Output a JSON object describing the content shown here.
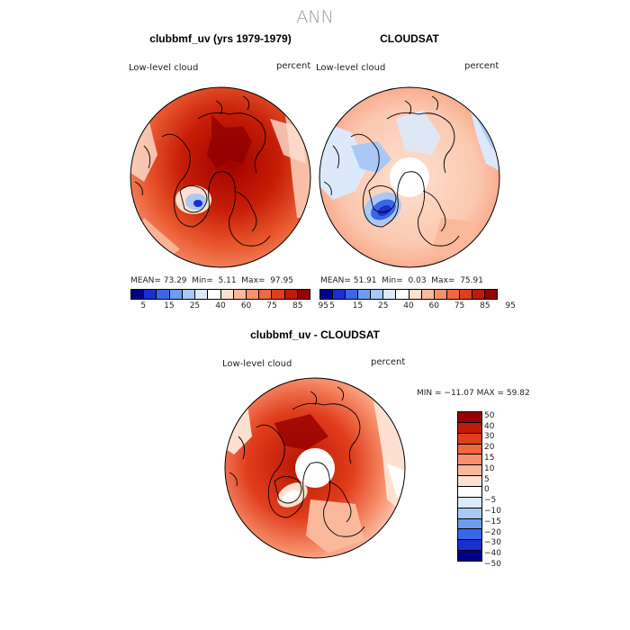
{
  "title": "ANN",
  "panels": [
    {
      "id": "clubbmf",
      "title": "clubbmf_uv (yrs 1979-1979)",
      "field_label": "Low-level cloud",
      "units": "percent",
      "stats": {
        "mean_label": "MEAN=",
        "mean": "73.29",
        "min_label": "Min=",
        "min": "5.11",
        "max_label": "Max=",
        "max": "97.95"
      }
    },
    {
      "id": "cloudsat",
      "title": "CLOUDSAT",
      "field_label": "Low-level cloud",
      "units": "percent",
      "stats": {
        "mean_label": "MEAN=",
        "mean": "51.91",
        "min_label": "Min=",
        "min": "0.03",
        "max_label": "Max=",
        "max": "75.91"
      }
    }
  ],
  "diff_panel": {
    "title": "clubbmf_uv - CLOUDSAT",
    "field_label": "Low-level cloud",
    "units": "percent",
    "minmax": "MIN = −11.07  MAX =  59.82"
  },
  "colorbar_abs": {
    "colors": [
      "#00008b",
      "#1a2fd0",
      "#3a66e8",
      "#6e9cf0",
      "#a9c8f5",
      "#dbe9fb",
      "#ffffff",
      "#fde0d0",
      "#fbb99b",
      "#f7916d",
      "#f0693f",
      "#e03d1c",
      "#c01a08",
      "#960000"
    ],
    "ticks": [
      "5",
      "15",
      "25",
      "40",
      "60",
      "75",
      "85",
      "95"
    ]
  },
  "colorbar_diff": {
    "colors": [
      "#960000",
      "#c01a08",
      "#e03d1c",
      "#f0693f",
      "#f7916d",
      "#fbb99b",
      "#fde0d0",
      "#ffffff",
      "#dbe9fb",
      "#a9c8f5",
      "#6e9cf0",
      "#3a66e8",
      "#1a2fd0",
      "#00008b"
    ],
    "ticks": [
      "50",
      "40",
      "30",
      "20",
      "15",
      "10",
      "5",
      "0",
      "−5",
      "−10",
      "−15",
      "−20",
      "−30",
      "−40",
      "−50"
    ]
  }
}
